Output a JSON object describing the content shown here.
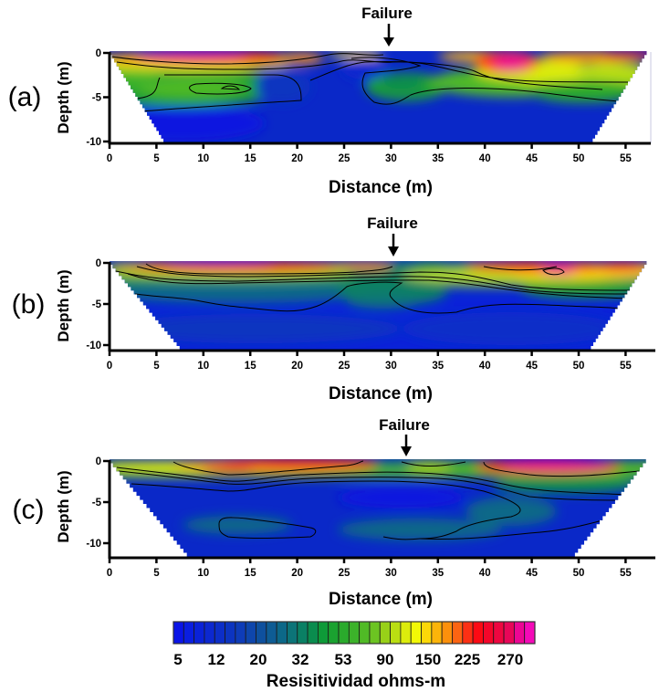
{
  "chart_data": [
    {
      "type": "heatmap",
      "panel_label": "(a)",
      "annotation": {
        "text": "Failure",
        "x": 29.5
      },
      "xlabel": "Distance (m)",
      "ylabel": "Depth (m)",
      "xlim": [
        0,
        58
      ],
      "ylim": [
        -10,
        0
      ],
      "xticks": [
        "0",
        "5",
        "10",
        "15",
        "20",
        "25",
        "30",
        "35",
        "40",
        "45",
        "50",
        "55"
      ],
      "yticks": [
        "0",
        "-5",
        "-10"
      ],
      "section_bottom_x": [
        6,
        51.5
      ],
      "section_top_x": [
        0,
        57.5
      ]
    },
    {
      "type": "heatmap",
      "panel_label": "(b)",
      "annotation": {
        "text": "Failure",
        "x": 30
      },
      "xlabel": "Distance (m)",
      "ylabel": "Depth (m)",
      "xlim": [
        0,
        58
      ],
      "ylim": [
        -10.7,
        0
      ],
      "xticks": [
        "0",
        "5",
        "10",
        "15",
        "20",
        "25",
        "30",
        "35",
        "40",
        "45",
        "50",
        "55"
      ],
      "yticks": [
        "0",
        "-5",
        "-10"
      ],
      "section_bottom_x": [
        7.8,
        51.3
      ],
      "section_top_x": [
        0,
        57.5
      ]
    },
    {
      "type": "heatmap",
      "panel_label": "(c)",
      "annotation": {
        "text": "Failure",
        "x": 31.5
      },
      "xlabel": "Distance (m)",
      "ylabel": "Depth (m)",
      "xlim": [
        0,
        58
      ],
      "ylim": [
        -11.8,
        0
      ],
      "xticks": [
        "0",
        "5",
        "10",
        "15",
        "20",
        "25",
        "30",
        "35",
        "40",
        "45",
        "50",
        "55"
      ],
      "yticks": [
        "0",
        "-5",
        "-10"
      ],
      "section_bottom_x": [
        8.6,
        49.6
      ],
      "section_top_x": [
        0,
        57.5
      ]
    }
  ],
  "colorbar": {
    "title": "Resisitividad  ohms-m",
    "tick_labels": [
      "5",
      "12",
      "20",
      "32",
      "53",
      "90",
      "150",
      "225",
      "270"
    ],
    "colors": [
      "#0a14e6",
      "#0a1ee0",
      "#0a22d8",
      "#0c28d0",
      "#0c2ec8",
      "#0c34c0",
      "#0e3cb8",
      "#0e46ac",
      "#0e509e",
      "#0e5c94",
      "#0c6888",
      "#0c7478",
      "#0a8064",
      "#0a8c4e",
      "#0e9a38",
      "#1aa230",
      "#2aaa2c",
      "#3cb22a",
      "#50ba26",
      "#6cc422",
      "#98d018",
      "#bade12",
      "#dcec0c",
      "#f2f806",
      "#fcd808",
      "#fcb40a",
      "#fc900c",
      "#fc6412",
      "#fc3014",
      "#fc0a14",
      "#f4062a",
      "#ee0640",
      "#e80658",
      "#ec0694",
      "#f40ab8"
    ]
  }
}
